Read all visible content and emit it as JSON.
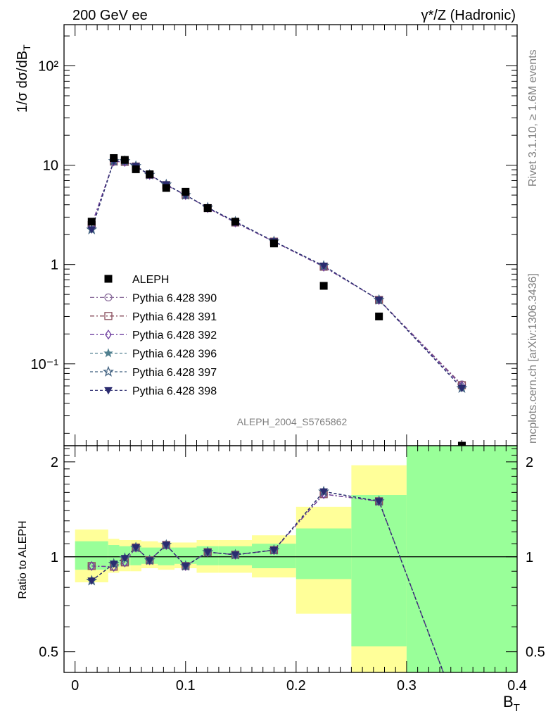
{
  "header": {
    "left": "200 GeV ee",
    "right": "γ*/Z (Hadronic)"
  },
  "side_text": {
    "rivet": "Rivet 3.1.10, ≥ 1.6M events",
    "mcplots": "mcplots.cern.ch [arXiv:1306.3436]"
  },
  "analysis_label": "ALEPH_2004_S5765862",
  "colors": {
    "data": "#000000",
    "band_inner": "#99ff99",
    "band_outer": "#ffff99",
    "p390": "#8b6d9c",
    "p391": "#8a4f5e",
    "p392": "#6f3fa0",
    "p396": "#4f7f8f",
    "p397": "#3f5f7f",
    "p398": "#2b2b6f"
  },
  "chart_data": [
    {
      "type": "scatter",
      "panel": "main",
      "ylabel": "1/σ  dσ/dB_T",
      "xlim": [
        -0.01,
        0.4
      ],
      "ylim": [
        0.015,
        260
      ],
      "yscale": "log",
      "yticks": [
        {
          "v": 0.1,
          "label": "10⁻¹"
        },
        {
          "v": 1,
          "label": "1"
        },
        {
          "v": 10,
          "label": "10"
        },
        {
          "v": 100,
          "label": "10²"
        }
      ],
      "legend_position": "center-left",
      "data": {
        "name": "ALEPH",
        "x": [
          0.015,
          0.035,
          0.045,
          0.055,
          0.0675,
          0.0825,
          0.1,
          0.12,
          0.145,
          0.18,
          0.225,
          0.275,
          0.35
        ],
        "y": [
          2.7,
          11.8,
          11.3,
          9.1,
          8.1,
          5.9,
          5.4,
          3.7,
          2.7,
          1.63,
          0.61,
          0.3,
          0.015
        ]
      },
      "series": [
        {
          "name": "Pythia 6.428 390",
          "marker": "circle",
          "dash": "6,3,2,3",
          "x": [
            0.015,
            0.035,
            0.045,
            0.055,
            0.0675,
            0.0825,
            0.1,
            0.12,
            0.145,
            0.18,
            0.225,
            0.275,
            0.35
          ],
          "y": [
            2.5,
            10.9,
            10.8,
            9.7,
            8.0,
            6.3,
            5.0,
            3.7,
            2.65,
            1.7,
            0.95,
            0.44,
            0.062
          ]
        },
        {
          "name": "Pythia 6.428 391",
          "marker": "square",
          "dash": "6,3,2,3",
          "x": [
            0.015,
            0.035,
            0.045,
            0.055,
            0.0675,
            0.0825,
            0.1,
            0.12,
            0.145,
            0.18,
            0.225,
            0.275,
            0.35
          ],
          "y": [
            2.5,
            10.9,
            10.8,
            9.7,
            8.0,
            6.3,
            5.0,
            3.7,
            2.65,
            1.7,
            0.95,
            0.44,
            0.061
          ]
        },
        {
          "name": "Pythia 6.428 392",
          "marker": "diamond",
          "dash": "6,3,2,3",
          "x": [
            0.015,
            0.035,
            0.045,
            0.055,
            0.0675,
            0.0825,
            0.1,
            0.12,
            0.145,
            0.18,
            0.225,
            0.275,
            0.35
          ],
          "y": [
            2.5,
            10.9,
            10.8,
            9.7,
            8.0,
            6.3,
            5.0,
            3.7,
            2.65,
            1.7,
            0.95,
            0.44,
            0.06
          ]
        },
        {
          "name": "Pythia 6.428 396",
          "marker": "star",
          "dash": "4,3",
          "x": [
            0.015,
            0.035,
            0.045,
            0.055,
            0.0675,
            0.0825,
            0.1,
            0.12,
            0.145,
            0.18,
            0.225,
            0.275,
            0.35
          ],
          "y": [
            2.25,
            11.0,
            11.0,
            9.8,
            8.0,
            6.4,
            5.0,
            3.75,
            2.7,
            1.71,
            0.97,
            0.44,
            0.057
          ]
        },
        {
          "name": "Pythia 6.428 397",
          "marker": "star-open",
          "dash": "4,3",
          "x": [
            0.015,
            0.035,
            0.045,
            0.055,
            0.0675,
            0.0825,
            0.1,
            0.12,
            0.145,
            0.18,
            0.225,
            0.275,
            0.35
          ],
          "y": [
            2.25,
            11.0,
            11.0,
            9.8,
            8.0,
            6.4,
            5.0,
            3.75,
            2.7,
            1.71,
            0.97,
            0.44,
            0.057
          ]
        },
        {
          "name": "Pythia 6.428 398",
          "marker": "triangle-down",
          "dash": "4,3",
          "x": [
            0.015,
            0.035,
            0.045,
            0.055,
            0.0675,
            0.0825,
            0.1,
            0.12,
            0.145,
            0.18,
            0.225,
            0.275,
            0.35
          ],
          "y": [
            2.25,
            11.0,
            11.0,
            9.8,
            8.0,
            6.4,
            5.0,
            3.75,
            2.7,
            1.71,
            0.97,
            0.44,
            0.057
          ]
        }
      ]
    },
    {
      "type": "line",
      "panel": "ratio",
      "xlabel": "B_T",
      "ylabel": "Ratio to ALEPH",
      "xlim": [
        -0.01,
        0.4
      ],
      "ylim": [
        0.43,
        2.25
      ],
      "yscale": "log",
      "xticks": [
        {
          "v": 0,
          "label": "0"
        },
        {
          "v": 0.1,
          "label": "0.1"
        },
        {
          "v": 0.2,
          "label": "0.2"
        },
        {
          "v": 0.3,
          "label": "0.3"
        },
        {
          "v": 0.4,
          "label": "0.4"
        }
      ],
      "yticks": [
        {
          "v": 0.5,
          "label": "0.5"
        },
        {
          "v": 1,
          "label": "1"
        },
        {
          "v": 2,
          "label": "2"
        }
      ],
      "bands": [
        {
          "x0": 0.0,
          "x1": 0.03,
          "inner": [
            0.91,
            1.12
          ],
          "outer": [
            0.83,
            1.22
          ]
        },
        {
          "x0": 0.03,
          "x1": 0.04,
          "inner": [
            0.93,
            1.09
          ],
          "outer": [
            0.89,
            1.14
          ]
        },
        {
          "x0": 0.04,
          "x1": 0.05,
          "inner": [
            0.94,
            1.08
          ],
          "outer": [
            0.9,
            1.13
          ]
        },
        {
          "x0": 0.05,
          "x1": 0.06,
          "inner": [
            0.94,
            1.08
          ],
          "outer": [
            0.9,
            1.13
          ]
        },
        {
          "x0": 0.06,
          "x1": 0.075,
          "inner": [
            0.95,
            1.07
          ],
          "outer": [
            0.92,
            1.12
          ]
        },
        {
          "x0": 0.075,
          "x1": 0.09,
          "inner": [
            0.94,
            1.07
          ],
          "outer": [
            0.91,
            1.11
          ]
        },
        {
          "x0": 0.09,
          "x1": 0.11,
          "inner": [
            0.95,
            1.07
          ],
          "outer": [
            0.92,
            1.11
          ]
        },
        {
          "x0": 0.11,
          "x1": 0.13,
          "inner": [
            0.94,
            1.08
          ],
          "outer": [
            0.89,
            1.13
          ]
        },
        {
          "x0": 0.13,
          "x1": 0.16,
          "inner": [
            0.94,
            1.08
          ],
          "outer": [
            0.89,
            1.13
          ]
        },
        {
          "x0": 0.16,
          "x1": 0.2,
          "inner": [
            0.92,
            1.1
          ],
          "outer": [
            0.86,
            1.17
          ]
        },
        {
          "x0": 0.2,
          "x1": 0.25,
          "inner": [
            0.85,
            1.23
          ],
          "outer": [
            0.66,
            1.44
          ]
        },
        {
          "x0": 0.25,
          "x1": 0.3,
          "inner": [
            0.52,
            1.57
          ],
          "outer": [
            0.3,
            1.95
          ]
        },
        {
          "x0": 0.3,
          "x1": 0.4,
          "inner": [
            0.3,
            3.0
          ],
          "outer": [
            0.3,
            3.0
          ]
        }
      ],
      "series": [
        {
          "name": "Pythia 6.428 390",
          "marker": "circle",
          "x": [
            0.015,
            0.035,
            0.045,
            0.055,
            0.0675,
            0.0825,
            0.1,
            0.12,
            0.145,
            0.18,
            0.225,
            0.275,
            0.35
          ],
          "y": [
            0.935,
            0.93,
            0.96,
            1.07,
            0.975,
            1.09,
            0.935,
            1.035,
            1.015,
            1.05,
            1.58,
            1.5,
            0.3
          ]
        },
        {
          "name": "Pythia 6.428 391",
          "marker": "square",
          "x": [
            0.015,
            0.035,
            0.045,
            0.055,
            0.0675,
            0.0825,
            0.1,
            0.12,
            0.145,
            0.18,
            0.225,
            0.275,
            0.35
          ],
          "y": [
            0.935,
            0.93,
            0.96,
            1.07,
            0.975,
            1.09,
            0.935,
            1.035,
            1.015,
            1.05,
            1.58,
            1.5,
            0.3
          ]
        },
        {
          "name": "Pythia 6.428 392",
          "marker": "diamond",
          "x": [
            0.015,
            0.035,
            0.045,
            0.055,
            0.0675,
            0.0825,
            0.1,
            0.12,
            0.145,
            0.18,
            0.225,
            0.275,
            0.35
          ],
          "y": [
            0.935,
            0.93,
            0.96,
            1.07,
            0.975,
            1.09,
            0.935,
            1.035,
            1.015,
            1.05,
            1.58,
            1.5,
            0.3
          ]
        },
        {
          "name": "Pythia 6.428 396",
          "marker": "star",
          "x": [
            0.015,
            0.035,
            0.045,
            0.055,
            0.0675,
            0.0825,
            0.1,
            0.12,
            0.145,
            0.18,
            0.225,
            0.275,
            0.35
          ],
          "y": [
            0.84,
            0.95,
            0.99,
            1.07,
            0.975,
            1.09,
            0.935,
            1.035,
            1.015,
            1.05,
            1.61,
            1.5,
            0.3
          ]
        },
        {
          "name": "Pythia 6.428 397",
          "marker": "star-open",
          "x": [
            0.015,
            0.035,
            0.045,
            0.055,
            0.0675,
            0.0825,
            0.1,
            0.12,
            0.145,
            0.18,
            0.225,
            0.275,
            0.35
          ],
          "y": [
            0.84,
            0.95,
            0.99,
            1.07,
            0.975,
            1.09,
            0.935,
            1.035,
            1.015,
            1.05,
            1.61,
            1.5,
            0.3
          ]
        },
        {
          "name": "Pythia 6.428 398",
          "marker": "triangle-down",
          "x": [
            0.015,
            0.035,
            0.045,
            0.055,
            0.0675,
            0.0825,
            0.1,
            0.12,
            0.145,
            0.18,
            0.225,
            0.275,
            0.35
          ],
          "y": [
            0.84,
            0.95,
            0.99,
            1.07,
            0.975,
            1.09,
            0.935,
            1.035,
            1.015,
            1.05,
            1.61,
            1.5,
            0.3
          ]
        }
      ]
    }
  ]
}
